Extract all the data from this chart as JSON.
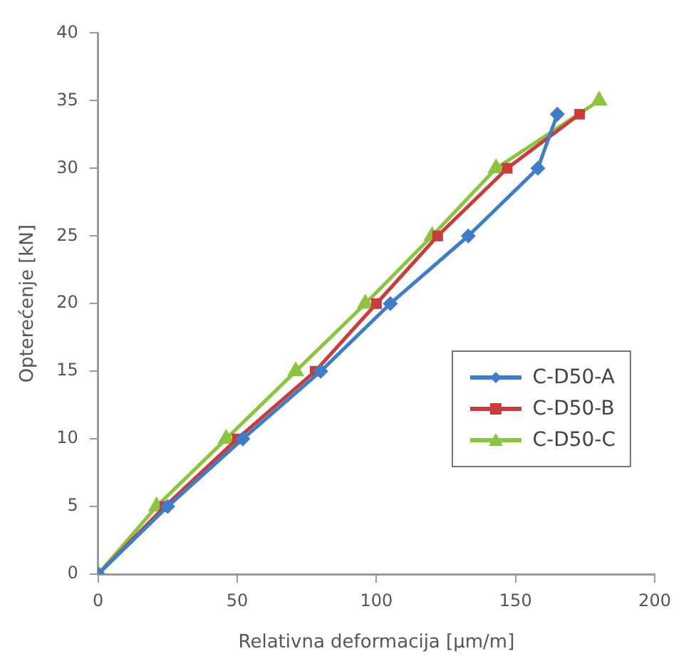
{
  "chart_data": {
    "type": "line",
    "xlabel": "Relativna deformacija [μm/m]",
    "ylabel": "Opterećenje [kN]",
    "xlim": [
      0,
      200
    ],
    "xticks": [
      0,
      50,
      100,
      150,
      200
    ],
    "ylim": [
      0,
      40
    ],
    "yticks": [
      0,
      5,
      10,
      15,
      20,
      25,
      30,
      35,
      40
    ],
    "grid": false,
    "legend": "right",
    "line_style": "solid",
    "series": [
      {
        "name": "C-D50-A",
        "color": "#3f7dc6",
        "marker": "diamond",
        "x": [
          0,
          25,
          52,
          80,
          105,
          133,
          158,
          165
        ],
        "values": [
          0,
          5,
          10,
          15,
          20,
          25,
          30,
          34
        ]
      },
      {
        "name": "C-D50-B",
        "color": "#c83c3c",
        "marker": "square",
        "x": [
          0,
          24,
          50,
          78,
          100,
          122,
          147,
          173
        ],
        "values": [
          0,
          5,
          10,
          15,
          20,
          25,
          30,
          34
        ]
      },
      {
        "name": "C-D50-C",
        "color": "#8cc440",
        "marker": "triangle",
        "x": [
          0,
          21,
          46,
          71,
          96,
          120,
          143,
          180
        ],
        "values": [
          0,
          5,
          10,
          15,
          20,
          25,
          30,
          35
        ]
      }
    ]
  }
}
